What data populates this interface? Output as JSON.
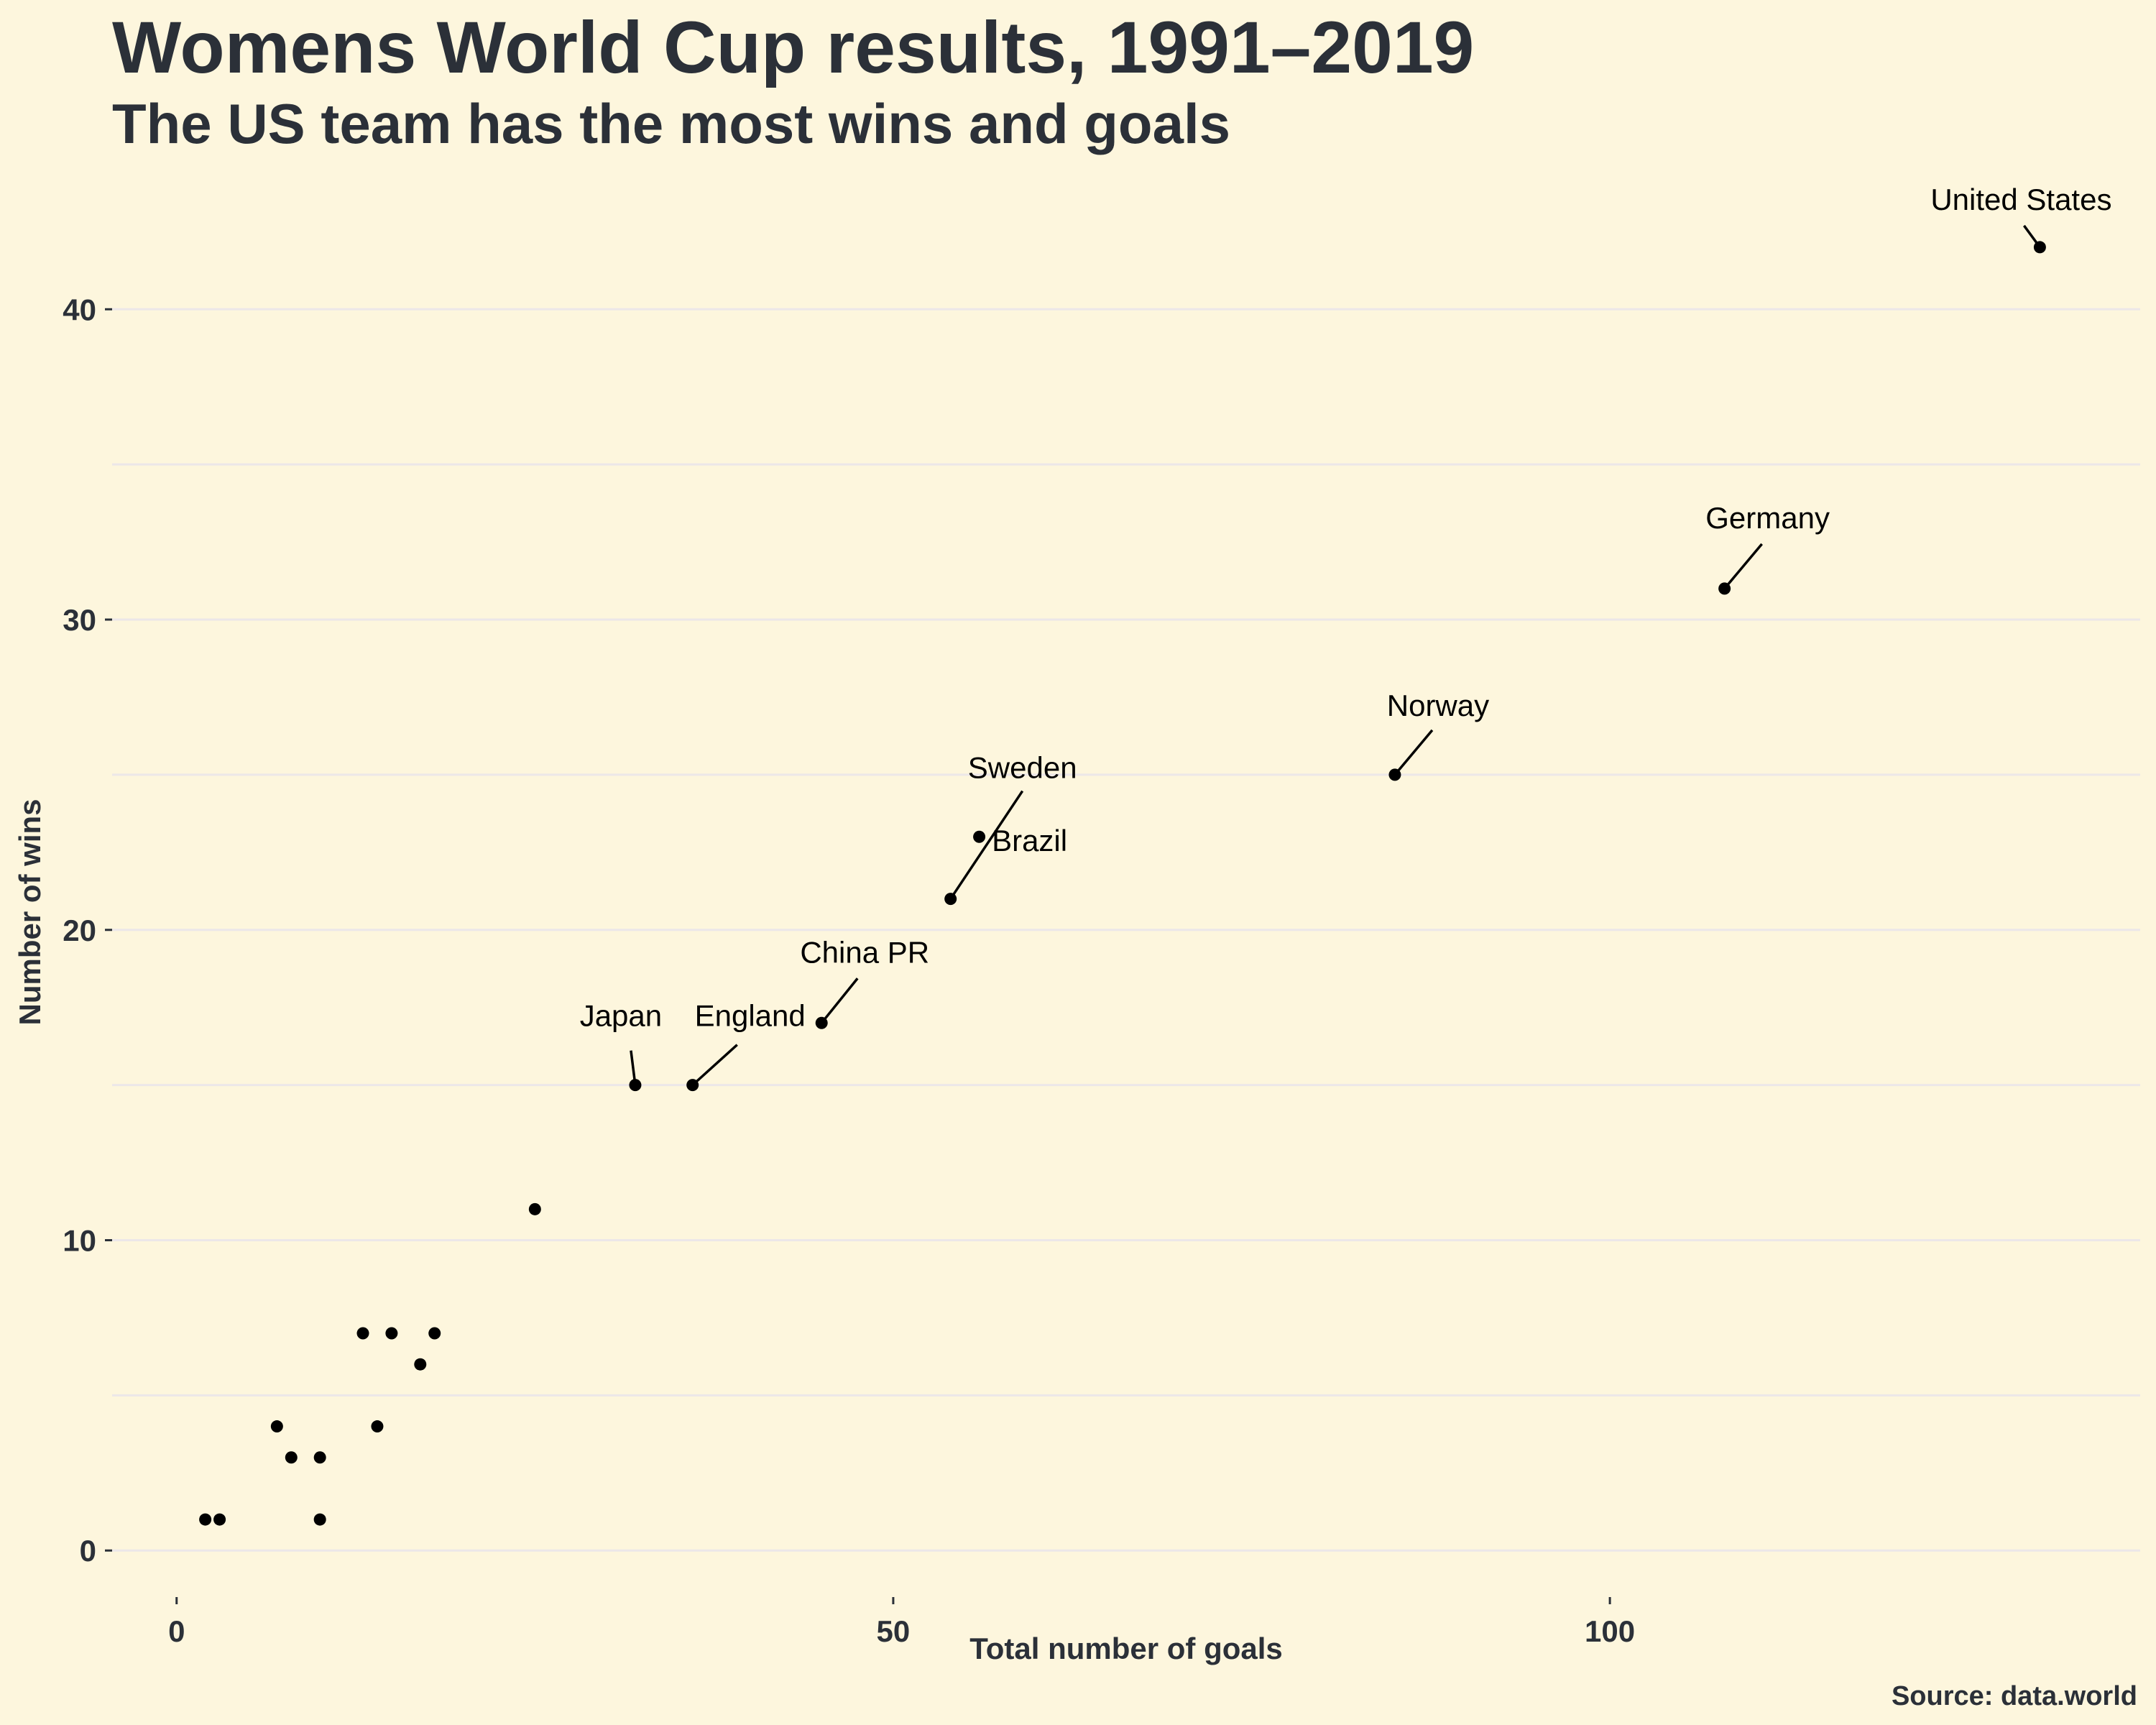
{
  "title": "Womens World Cup results, 1991–2019",
  "subtitle": "The US team has the most wins and goals",
  "caption": "Source: data.world",
  "chart_data": {
    "type": "scatter",
    "title": "Womens World Cup results, 1991–2019",
    "subtitle": "The US team has the most wins and goals",
    "xlabel": "Total number of goals",
    "ylabel": "Number of wins",
    "xlim": [
      -4.5,
      137
    ],
    "ylim": [
      -1.5,
      44.5
    ],
    "xticks": [
      0,
      50,
      100
    ],
    "yticks": [
      0,
      10,
      20,
      30,
      40
    ],
    "grid": "horizontal",
    "background": "#fdf6dd",
    "gridline_color": "#ece7e8",
    "point_color": "#000000",
    "points": [
      {
        "x": 2,
        "y": 1
      },
      {
        "x": 3,
        "y": 1
      },
      {
        "x": 7,
        "y": 4
      },
      {
        "x": 8,
        "y": 3
      },
      {
        "x": 10,
        "y": 3
      },
      {
        "x": 10,
        "y": 1
      },
      {
        "x": 13,
        "y": 7
      },
      {
        "x": 14,
        "y": 4
      },
      {
        "x": 15,
        "y": 7
      },
      {
        "x": 17,
        "y": 6
      },
      {
        "x": 18,
        "y": 7
      },
      {
        "x": 25,
        "y": 11
      },
      {
        "x": 32,
        "y": 15,
        "label": "Japan"
      },
      {
        "x": 36,
        "y": 15,
        "label": "England"
      },
      {
        "x": 45,
        "y": 17,
        "label": "China PR"
      },
      {
        "x": 54,
        "y": 21,
        "label": "Sweden"
      },
      {
        "x": 56,
        "y": 23,
        "label": "Brazil"
      },
      {
        "x": 85,
        "y": 25,
        "label": "Norway"
      },
      {
        "x": 108,
        "y": 31,
        "label": "Germany"
      },
      {
        "x": 130,
        "y": 42,
        "label": "United States"
      }
    ]
  }
}
